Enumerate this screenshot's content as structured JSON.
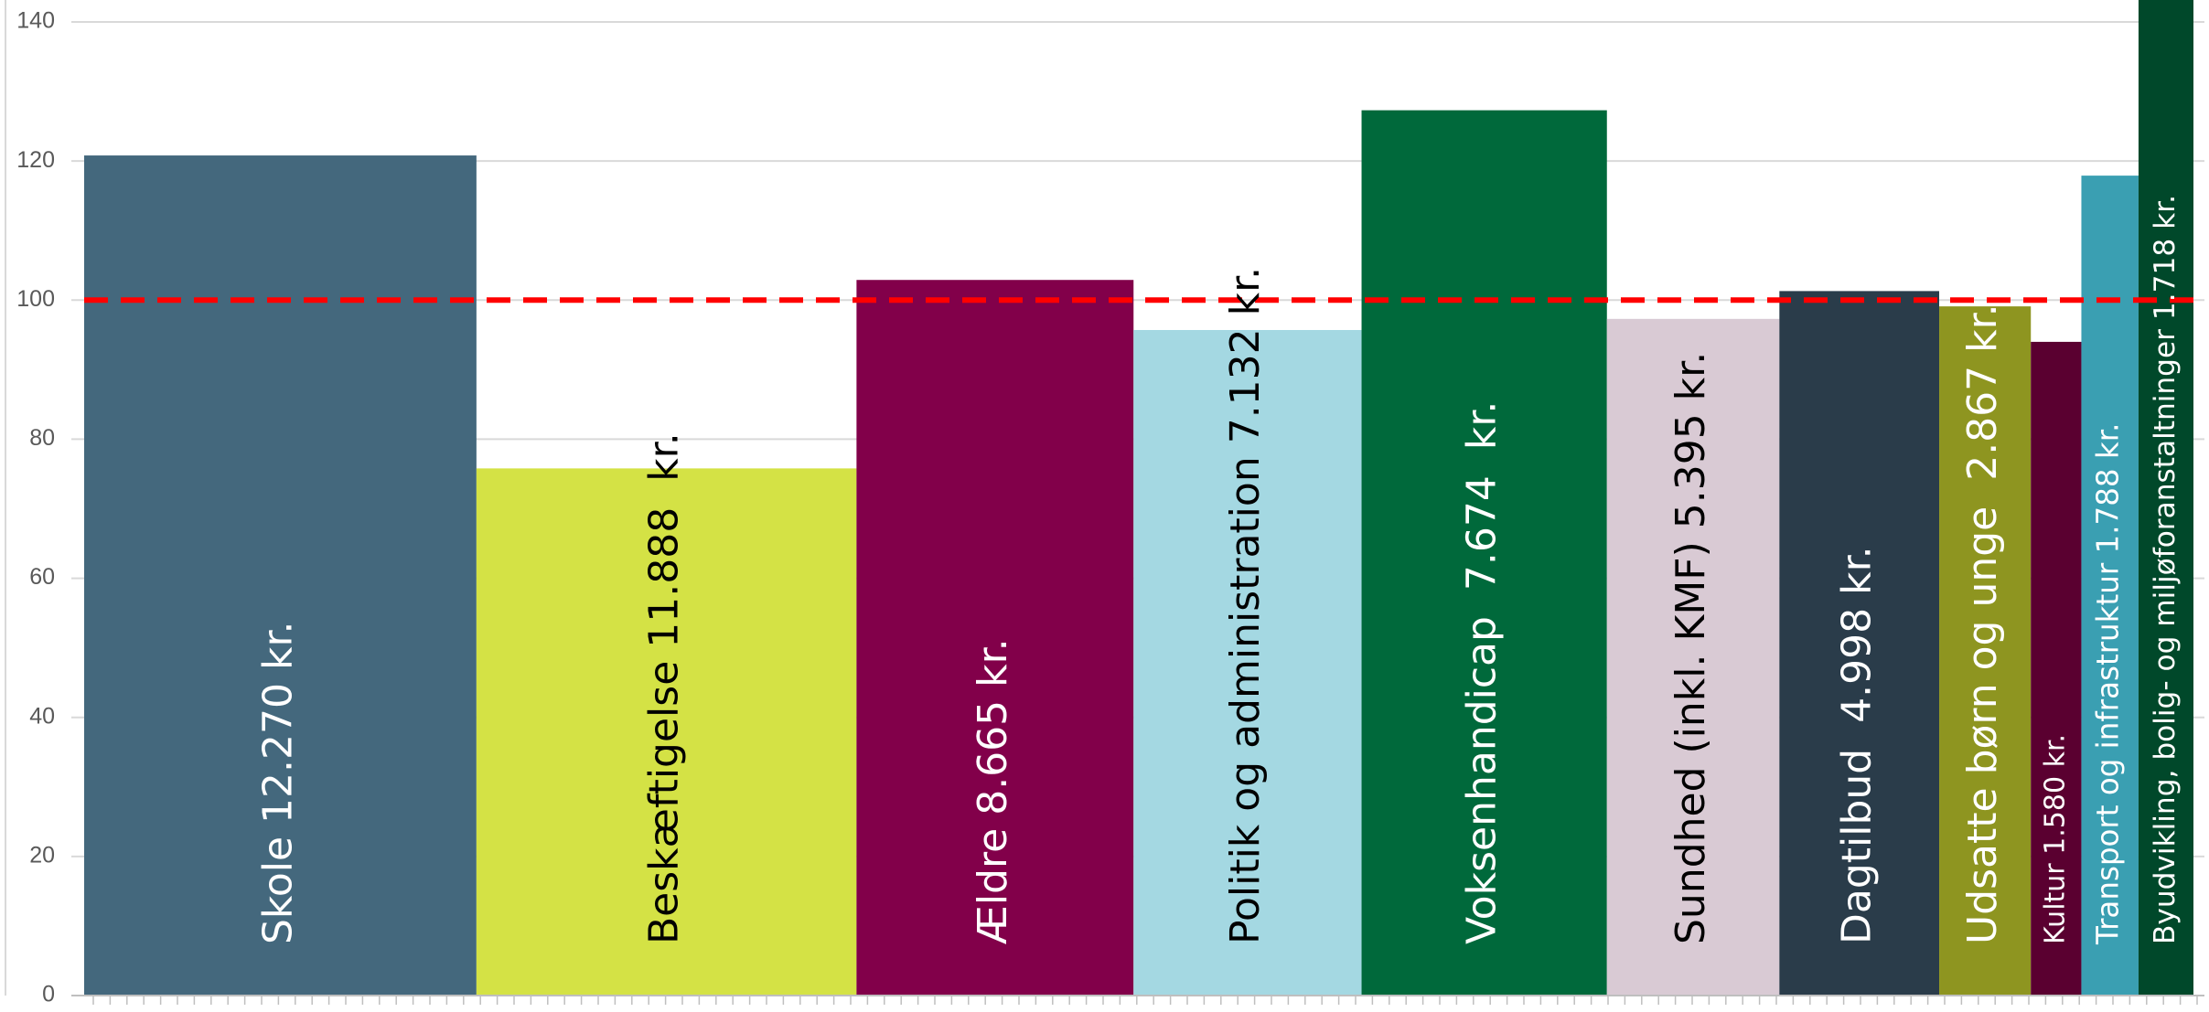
{
  "chart_data": {
    "type": "bar",
    "variable_width": true,
    "title": "",
    "xlabel": "",
    "ylabel": "",
    "ylim": [
      0,
      140
    ],
    "yticks": [
      0,
      20,
      40,
      60,
      80,
      100,
      120,
      140
    ],
    "grid": true,
    "reference_line": {
      "value": 100,
      "color": "#ff0000",
      "style": "dashed"
    },
    "bars": [
      {
        "label": "Skole 12.270 kr.",
        "value": 120.8,
        "weight": 12270,
        "color": "#44687d",
        "text_color": "#ffffff"
      },
      {
        "label": "Beskæftigelse 11.888  kr.",
        "value": 75.8,
        "weight": 11888,
        "color": "#d4e245",
        "text_color": "#000000"
      },
      {
        "label": "Ældre 8.665 kr.",
        "value": 102.9,
        "weight": 8665,
        "color": "#82004a",
        "text_color": "#ffffff"
      },
      {
        "label": "Politik og administration 7.132 kr.",
        "value": 95.7,
        "weight": 7132,
        "color": "#a4d8e2",
        "text_color": "#000000"
      },
      {
        "label": "Voksenhandicap  7.674  kr.",
        "value": 127.3,
        "weight": 7674,
        "color": "#00693b",
        "text_color": "#ffffff"
      },
      {
        "label": "Sundhed (inkl. KMF) 5.395 kr.",
        "value": 97.3,
        "weight": 5395,
        "color": "#d9cad4",
        "text_color": "#000000"
      },
      {
        "label": "Dagtilbud  4.998 kr.",
        "value": 101.3,
        "weight": 4998,
        "color": "#2a3c4a",
        "text_color": "#ffffff"
      },
      {
        "label": "Udsatte børn og unge  2.867 kr.",
        "value": 99.1,
        "weight": 2867,
        "color": "#8e9520",
        "text_color": "#ffffff"
      },
      {
        "label": "Kultur 1.580 kr.",
        "value": 94.0,
        "weight": 1580,
        "color": "#5a0030",
        "text_color": "#ffffff"
      },
      {
        "label": "Transport og infrastruktur 1.788 kr.",
        "value": 117.9,
        "weight": 1788,
        "color": "#3a9fb2",
        "text_color": "#ffffff"
      },
      {
        "label": "Byudvikling, bolig- og miljøforanstaltninger 1.718 kr.",
        "value": 143.5,
        "weight": 1718,
        "color": "#00482a",
        "text_color": "#ffffff"
      }
    ]
  }
}
